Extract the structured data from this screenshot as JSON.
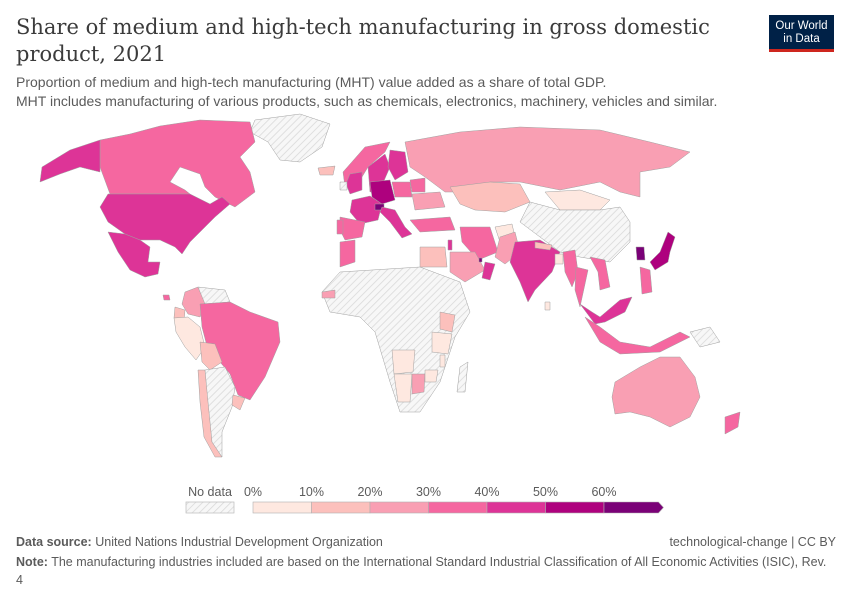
{
  "header": {
    "title": "Share of medium and high-tech manufacturing in gross domestic product, 2021",
    "subtitle_lines": [
      "Proportion of medium and high-tech manufacturing (MHT) value added as a share of total GDP.",
      "MHT includes manufacturing of various products, such as chemicals, electronics, machinery, vehicles and similar."
    ],
    "logo_lines": [
      "Our World",
      "in Data"
    ]
  },
  "legend": {
    "no_data_label": "No data",
    "bins": [
      {
        "label": "0%",
        "color": "#fee8e0"
      },
      {
        "label": "10%",
        "color": "#fcc0bc"
      },
      {
        "label": "20%",
        "color": "#f99fb3"
      },
      {
        "label": "30%",
        "color": "#f567a0"
      },
      {
        "label": "40%",
        "color": "#dd3497"
      },
      {
        "label": "50%",
        "color": "#ae017e"
      },
      {
        "label": "60%",
        "color": "#7a0177"
      }
    ],
    "no_data_color": "#e6e6e6"
  },
  "chart_data": {
    "type": "choropleth",
    "title": "Share of medium and high-tech manufacturing in gross domestic product, 2021",
    "year": 2021,
    "unit": "% of GDP",
    "scale_breaks": [
      0,
      10,
      20,
      30,
      40,
      50,
      60
    ],
    "regions": [
      {
        "name": "United States",
        "bin": "40-50%"
      },
      {
        "name": "Canada",
        "bin": "30-40%"
      },
      {
        "name": "Mexico",
        "bin": "40-50%"
      },
      {
        "name": "Greenland",
        "bin": "No data"
      },
      {
        "name": "Brazil",
        "bin": "30-40%"
      },
      {
        "name": "Colombia",
        "bin": "20-30%"
      },
      {
        "name": "Peru",
        "bin": "0-10%"
      },
      {
        "name": "Ecuador",
        "bin": "10-20%"
      },
      {
        "name": "Bolivia",
        "bin": "10-20%"
      },
      {
        "name": "Chile",
        "bin": "10-20%"
      },
      {
        "name": "Argentina",
        "bin": "No data"
      },
      {
        "name": "Venezuela",
        "bin": "No data"
      },
      {
        "name": "Uruguay",
        "bin": "10-20%"
      },
      {
        "name": "Costa Rica",
        "bin": "30-40%"
      },
      {
        "name": "Germany",
        "bin": "50-60%"
      },
      {
        "name": "Switzerland",
        "bin": "60%+"
      },
      {
        "name": "France",
        "bin": "40-50%"
      },
      {
        "name": "United Kingdom",
        "bin": "40-50%"
      },
      {
        "name": "Ireland",
        "bin": "No data"
      },
      {
        "name": "Spain",
        "bin": "30-40%"
      },
      {
        "name": "Portugal",
        "bin": "30-40%"
      },
      {
        "name": "Italy",
        "bin": "40-50%"
      },
      {
        "name": "Sweden",
        "bin": "40-50%"
      },
      {
        "name": "Finland",
        "bin": "40-50%"
      },
      {
        "name": "Norway",
        "bin": "30-40%"
      },
      {
        "name": "Poland",
        "bin": "30-40%"
      },
      {
        "name": "Belarus",
        "bin": "30-40%"
      },
      {
        "name": "Ukraine",
        "bin": "20-30%"
      },
      {
        "name": "Russia",
        "bin": "20-30%"
      },
      {
        "name": "Turkey",
        "bin": "30-40%"
      },
      {
        "name": "Iceland",
        "bin": "10-20%"
      },
      {
        "name": "Morocco",
        "bin": "30-40%"
      },
      {
        "name": "Egypt",
        "bin": "10-20%"
      },
      {
        "name": "Israel",
        "bin": "40-50%"
      },
      {
        "name": "Saudi Arabia",
        "bin": "20-30%"
      },
      {
        "name": "Oman",
        "bin": "40-50%"
      },
      {
        "name": "Qatar",
        "bin": "60%+"
      },
      {
        "name": "Iran",
        "bin": "30-40%"
      },
      {
        "name": "Afghanistan",
        "bin": "0-10%"
      },
      {
        "name": "Pakistan",
        "bin": "20-30%"
      },
      {
        "name": "Kazakhstan",
        "bin": "10-20%"
      },
      {
        "name": "Mongolia",
        "bin": "0-10%"
      },
      {
        "name": "China",
        "bin": "No data"
      },
      {
        "name": "India",
        "bin": "40-50%"
      },
      {
        "name": "Nepal",
        "bin": "10-20%"
      },
      {
        "name": "Bangladesh",
        "bin": "0-10%"
      },
      {
        "name": "Myanmar",
        "bin": "30-40%"
      },
      {
        "name": "Thailand",
        "bin": "30-40%"
      },
      {
        "name": "Vietnam",
        "bin": "30-40%"
      },
      {
        "name": "Malaysia",
        "bin": "40-50%"
      },
      {
        "name": "Indonesia",
        "bin": "30-40%"
      },
      {
        "name": "Philippines",
        "bin": "30-40%"
      },
      {
        "name": "Japan",
        "bin": "50-60%"
      },
      {
        "name": "South Korea",
        "bin": "60%+"
      },
      {
        "name": "Sri Lanka",
        "bin": "0-10%"
      },
      {
        "name": "Papua New Guinea",
        "bin": "No data"
      },
      {
        "name": "Australia",
        "bin": "20-30%"
      },
      {
        "name": "New Zealand",
        "bin": "30-40%"
      },
      {
        "name": "Senegal",
        "bin": "20-30%"
      },
      {
        "name": "Kenya",
        "bin": "10-20%"
      },
      {
        "name": "Tanzania",
        "bin": "0-10%"
      },
      {
        "name": "Malawi",
        "bin": "0-10%"
      },
      {
        "name": "Angola",
        "bin": "0-10%"
      },
      {
        "name": "Namibia",
        "bin": "0-10%"
      },
      {
        "name": "Botswana",
        "bin": "20-30%"
      },
      {
        "name": "Zimbabwe",
        "bin": "0-10%"
      },
      {
        "name": "Madagascar",
        "bin": "No data"
      }
    ]
  },
  "footer": {
    "source_label": "Data source:",
    "source_text": "United Nations Industrial Development Organization",
    "license_text": "technological-change | CC BY",
    "note_label": "Note:",
    "note_text": "The manufacturing industries included are based on the International Standard Industrial Classification of All Economic Activities (ISIC), Rev. 4"
  }
}
